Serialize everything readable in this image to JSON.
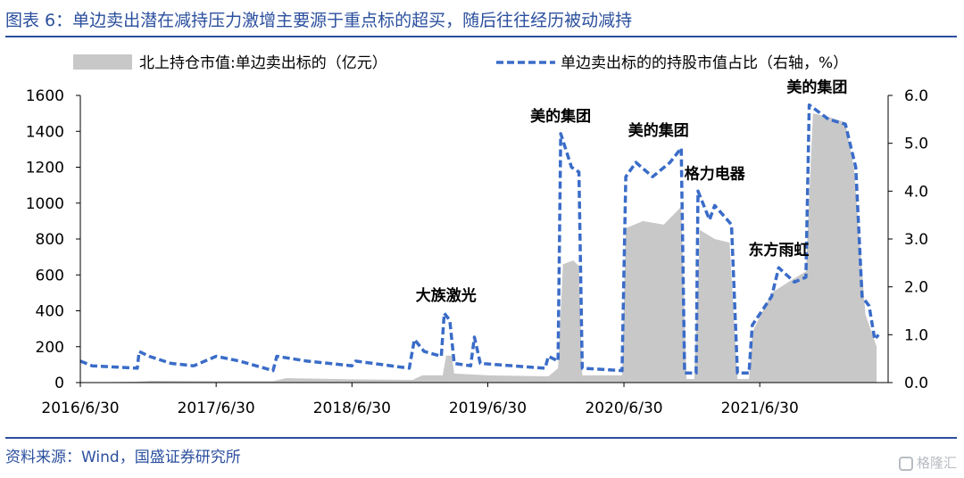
{
  "title": "图表 6：单边卖出潜在减持压力激增主要源于重点标的超买，随后往往经历被动减持",
  "source": "资料来源：Wind，国盛证券研究所",
  "watermark": "格隆汇",
  "colors": {
    "area": "#c8c8c8",
    "line": "#3a6cc8",
    "text_blue": "#2b4f9e"
  },
  "chart_data": {
    "type": "area+line",
    "x_ticks": [
      "2016/6/30",
      "2017/6/30",
      "2018/6/30",
      "2019/6/30",
      "2020/6/30",
      "2021/6/30"
    ],
    "y_left": {
      "ticks": [
        "0",
        "200",
        "400",
        "600",
        "800",
        "1000",
        "1200",
        "1400",
        "1600"
      ],
      "lim": [
        0,
        1600
      ]
    },
    "y_right": {
      "ticks": [
        "0.0",
        "1.0",
        "2.0",
        "3.0",
        "4.0",
        "5.0",
        "6.0"
      ],
      "lim": [
        0,
        6
      ]
    },
    "legend_position": "top",
    "series": [
      {
        "name": "北上持仓市值:单边卖出标的（亿元）",
        "kind": "area",
        "axis": "left",
        "points": [
          [
            "2016-06-30",
            0
          ],
          [
            "2016-11-30",
            5
          ],
          [
            "2017-01-05",
            10
          ],
          [
            "2017-06-30",
            8
          ],
          [
            "2017-11-30",
            8
          ],
          [
            "2018-01-05",
            25
          ],
          [
            "2018-06-30",
            18
          ],
          [
            "2018-12-10",
            15
          ],
          [
            "2019-01-05",
            40
          ],
          [
            "2019-03-01",
            40
          ],
          [
            "2019-03-10",
            150
          ],
          [
            "2019-03-25",
            150
          ],
          [
            "2019-04-01",
            50
          ],
          [
            "2019-06-30",
            40
          ],
          [
            "2019-12-10",
            35
          ],
          [
            "2020-01-05",
            80
          ],
          [
            "2020-01-18",
            660
          ],
          [
            "2020-02-15",
            680
          ],
          [
            "2020-03-01",
            650
          ],
          [
            "2020-03-10",
            40
          ],
          [
            "2020-06-25",
            40
          ],
          [
            "2020-07-05",
            860
          ],
          [
            "2020-08-20",
            900
          ],
          [
            "2020-10-15",
            880
          ],
          [
            "2020-12-01",
            980
          ],
          [
            "2020-12-15",
            20
          ],
          [
            "2021-01-05",
            20
          ],
          [
            "2021-01-20",
            850
          ],
          [
            "2021-03-01",
            800
          ],
          [
            "2021-04-10",
            780
          ],
          [
            "2021-05-01",
            20
          ],
          [
            "2021-06-01",
            20
          ],
          [
            "2021-06-10",
            280
          ],
          [
            "2021-08-01",
            500
          ],
          [
            "2021-09-15",
            560
          ],
          [
            "2021-11-01",
            620
          ],
          [
            "2021-11-20",
            1500
          ],
          [
            "2022-01-01",
            1480
          ],
          [
            "2022-02-15",
            1450
          ],
          [
            "2022-03-10",
            1200
          ],
          [
            "2022-04-10",
            380
          ],
          [
            "2022-05-10",
            200
          ]
        ]
      },
      {
        "name": "单边卖出标的的持股市值占比（右轴，%）",
        "kind": "line",
        "axis": "right",
        "points": [
          [
            "2016-06-30",
            0.45
          ],
          [
            "2016-08-01",
            0.35
          ],
          [
            "2016-11-30",
            0.3
          ],
          [
            "2016-12-05",
            0.65
          ],
          [
            "2017-01-01",
            0.55
          ],
          [
            "2017-03-01",
            0.4
          ],
          [
            "2017-05-01",
            0.35
          ],
          [
            "2017-06-30",
            0.55
          ],
          [
            "2017-09-01",
            0.45
          ],
          [
            "2017-11-30",
            0.25
          ],
          [
            "2017-12-10",
            0.55
          ],
          [
            "2018-03-01",
            0.45
          ],
          [
            "2018-06-30",
            0.35
          ],
          [
            "2018-07-10",
            0.45
          ],
          [
            "2018-12-01",
            0.3
          ],
          [
            "2018-12-15",
            0.9
          ],
          [
            "2019-01-10",
            0.65
          ],
          [
            "2019-02-25",
            0.55
          ],
          [
            "2019-03-05",
            1.45
          ],
          [
            "2019-03-20",
            1.3
          ],
          [
            "2019-04-01",
            0.4
          ],
          [
            "2019-05-15",
            0.35
          ],
          [
            "2019-05-25",
            0.95
          ],
          [
            "2019-06-10",
            0.4
          ],
          [
            "2019-12-01",
            0.3
          ],
          [
            "2019-12-10",
            0.55
          ],
          [
            "2020-01-05",
            0.45
          ],
          [
            "2020-01-12",
            5.2
          ],
          [
            "2020-02-10",
            4.5
          ],
          [
            "2020-03-01",
            4.4
          ],
          [
            "2020-03-10",
            0.3
          ],
          [
            "2020-06-25",
            0.25
          ],
          [
            "2020-07-05",
            4.3
          ],
          [
            "2020-08-01",
            4.6
          ],
          [
            "2020-09-15",
            4.3
          ],
          [
            "2020-11-01",
            4.6
          ],
          [
            "2020-12-01",
            4.9
          ],
          [
            "2020-12-10",
            0.2
          ],
          [
            "2021-01-10",
            0.2
          ],
          [
            "2021-01-15",
            4.0
          ],
          [
            "2021-02-15",
            3.4
          ],
          [
            "2021-03-01",
            3.7
          ],
          [
            "2021-04-15",
            3.3
          ],
          [
            "2021-05-01",
            0.2
          ],
          [
            "2021-06-01",
            0.2
          ],
          [
            "2021-06-10",
            1.2
          ],
          [
            "2021-08-01",
            1.8
          ],
          [
            "2021-08-20",
            2.4
          ],
          [
            "2021-10-01",
            2.1
          ],
          [
            "2021-11-01",
            2.2
          ],
          [
            "2021-11-10",
            5.8
          ],
          [
            "2022-01-01",
            5.5
          ],
          [
            "2022-02-15",
            5.4
          ],
          [
            "2022-03-15",
            4.5
          ],
          [
            "2022-04-01",
            1.8
          ],
          [
            "2022-04-20",
            1.6
          ],
          [
            "2022-05-05",
            0.9
          ],
          [
            "2022-05-15",
            1.0
          ]
        ]
      }
    ],
    "annotations": [
      {
        "text": "大族激光",
        "x": "2019-03-10",
        "y_right": 1.45
      },
      {
        "text": "美的集团",
        "x": "2020-01-12",
        "y_right": 5.2
      },
      {
        "text": "美的集团",
        "x": "2020-10-01",
        "y_right": 4.9
      },
      {
        "text": "格力电器",
        "x": "2021-03-01",
        "y_right": 4.0
      },
      {
        "text": "东方雨虹",
        "x": "2021-08-20",
        "y_right": 2.4
      },
      {
        "text": "美的集团",
        "x": "2021-12-01",
        "y_right": 5.8
      }
    ]
  }
}
